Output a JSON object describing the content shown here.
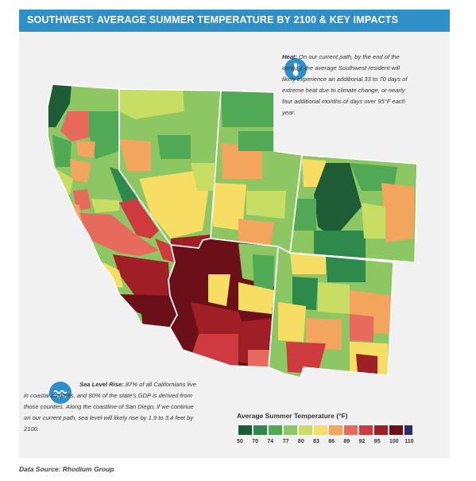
{
  "header": {
    "title": "SOUTHWEST: AVERAGE SUMMER TEMPERATURE BY 2100 & KEY IMPACTS"
  },
  "heat": {
    "lead": "Heat:",
    "text": " On our current path, by the end of the century, the average Southwest resident will likely experience an additional 33 to 70 days of extreme heat due to climate change, or nearly four additional months of days over 95°F each year.",
    "icon": "thermometer-icon"
  },
  "sea": {
    "lead": "Sea Level Rise:",
    "text": " 87% of all Californians live in coastal counties, and 80% of the state's GDP is derived from those counties. Along the coastline of San Diego, if we continue on our current path, sea level will likely rise by 1.9 to 3.4 feet by 2100.",
    "icon": "wave-icon"
  },
  "legend": {
    "title": "Average Summer Temperature (°F)",
    "ticks": [
      "50",
      "70",
      "74",
      "77",
      "80",
      "83",
      "86",
      "89",
      "92",
      "95",
      "100",
      "110"
    ],
    "colors": [
      "#1e5c36",
      "#2e8a4a",
      "#4fa955",
      "#8cc763",
      "#c8dd63",
      "#f6dd64",
      "#f3a55d",
      "#e86a5d",
      "#cf3a3f",
      "#a01e26",
      "#6b0f18",
      "#2a2a6e"
    ]
  },
  "map": {
    "state_border_color": "#ffffff"
  },
  "source": "Data Source: Rhodium Group"
}
